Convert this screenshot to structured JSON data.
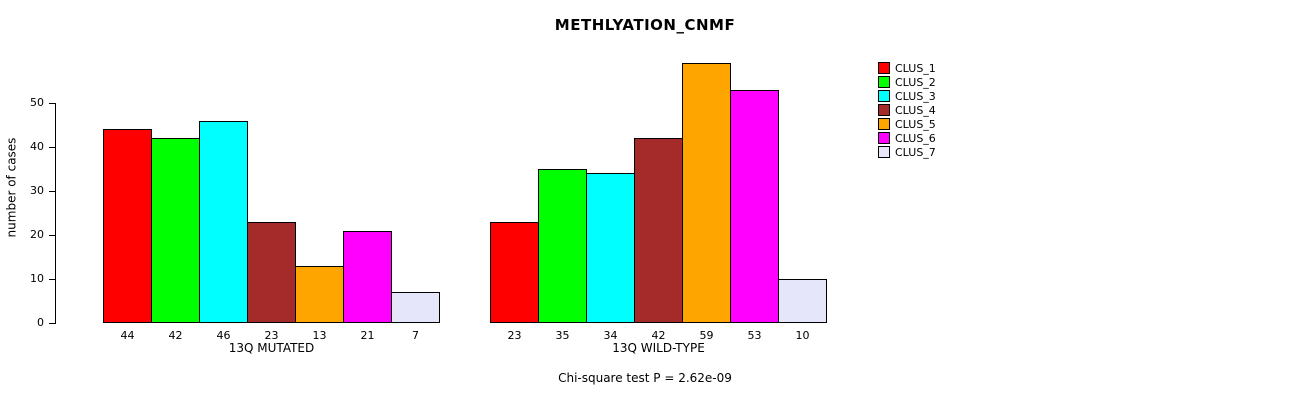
{
  "chart_data": {
    "type": "bar",
    "title": "METHLYATION_CNMF",
    "ylabel": "number of cases",
    "footer": "Chi-square test P = 2.62e-09",
    "legend_position": "right",
    "grid": false,
    "ylim": [
      0,
      60
    ],
    "yticks": [
      0,
      10,
      20,
      30,
      40,
      50
    ],
    "legend": [
      "CLUS_1",
      "CLUS_2",
      "CLUS_3",
      "CLUS_4",
      "CLUS_5",
      "CLUS_6",
      "CLUS_7"
    ],
    "series_colors": [
      "#FF0000",
      "#00FF00",
      "#00FFFF",
      "#A52A2A",
      "#FFA500",
      "#FF00FF",
      "#E6E6FA"
    ],
    "groups": [
      {
        "label": "13Q MUTATED",
        "values": [
          44,
          42,
          46,
          23,
          13,
          21,
          7
        ]
      },
      {
        "label": "13Q WILD-TYPE",
        "values": [
          23,
          35,
          34,
          42,
          59,
          53,
          10
        ]
      }
    ]
  }
}
